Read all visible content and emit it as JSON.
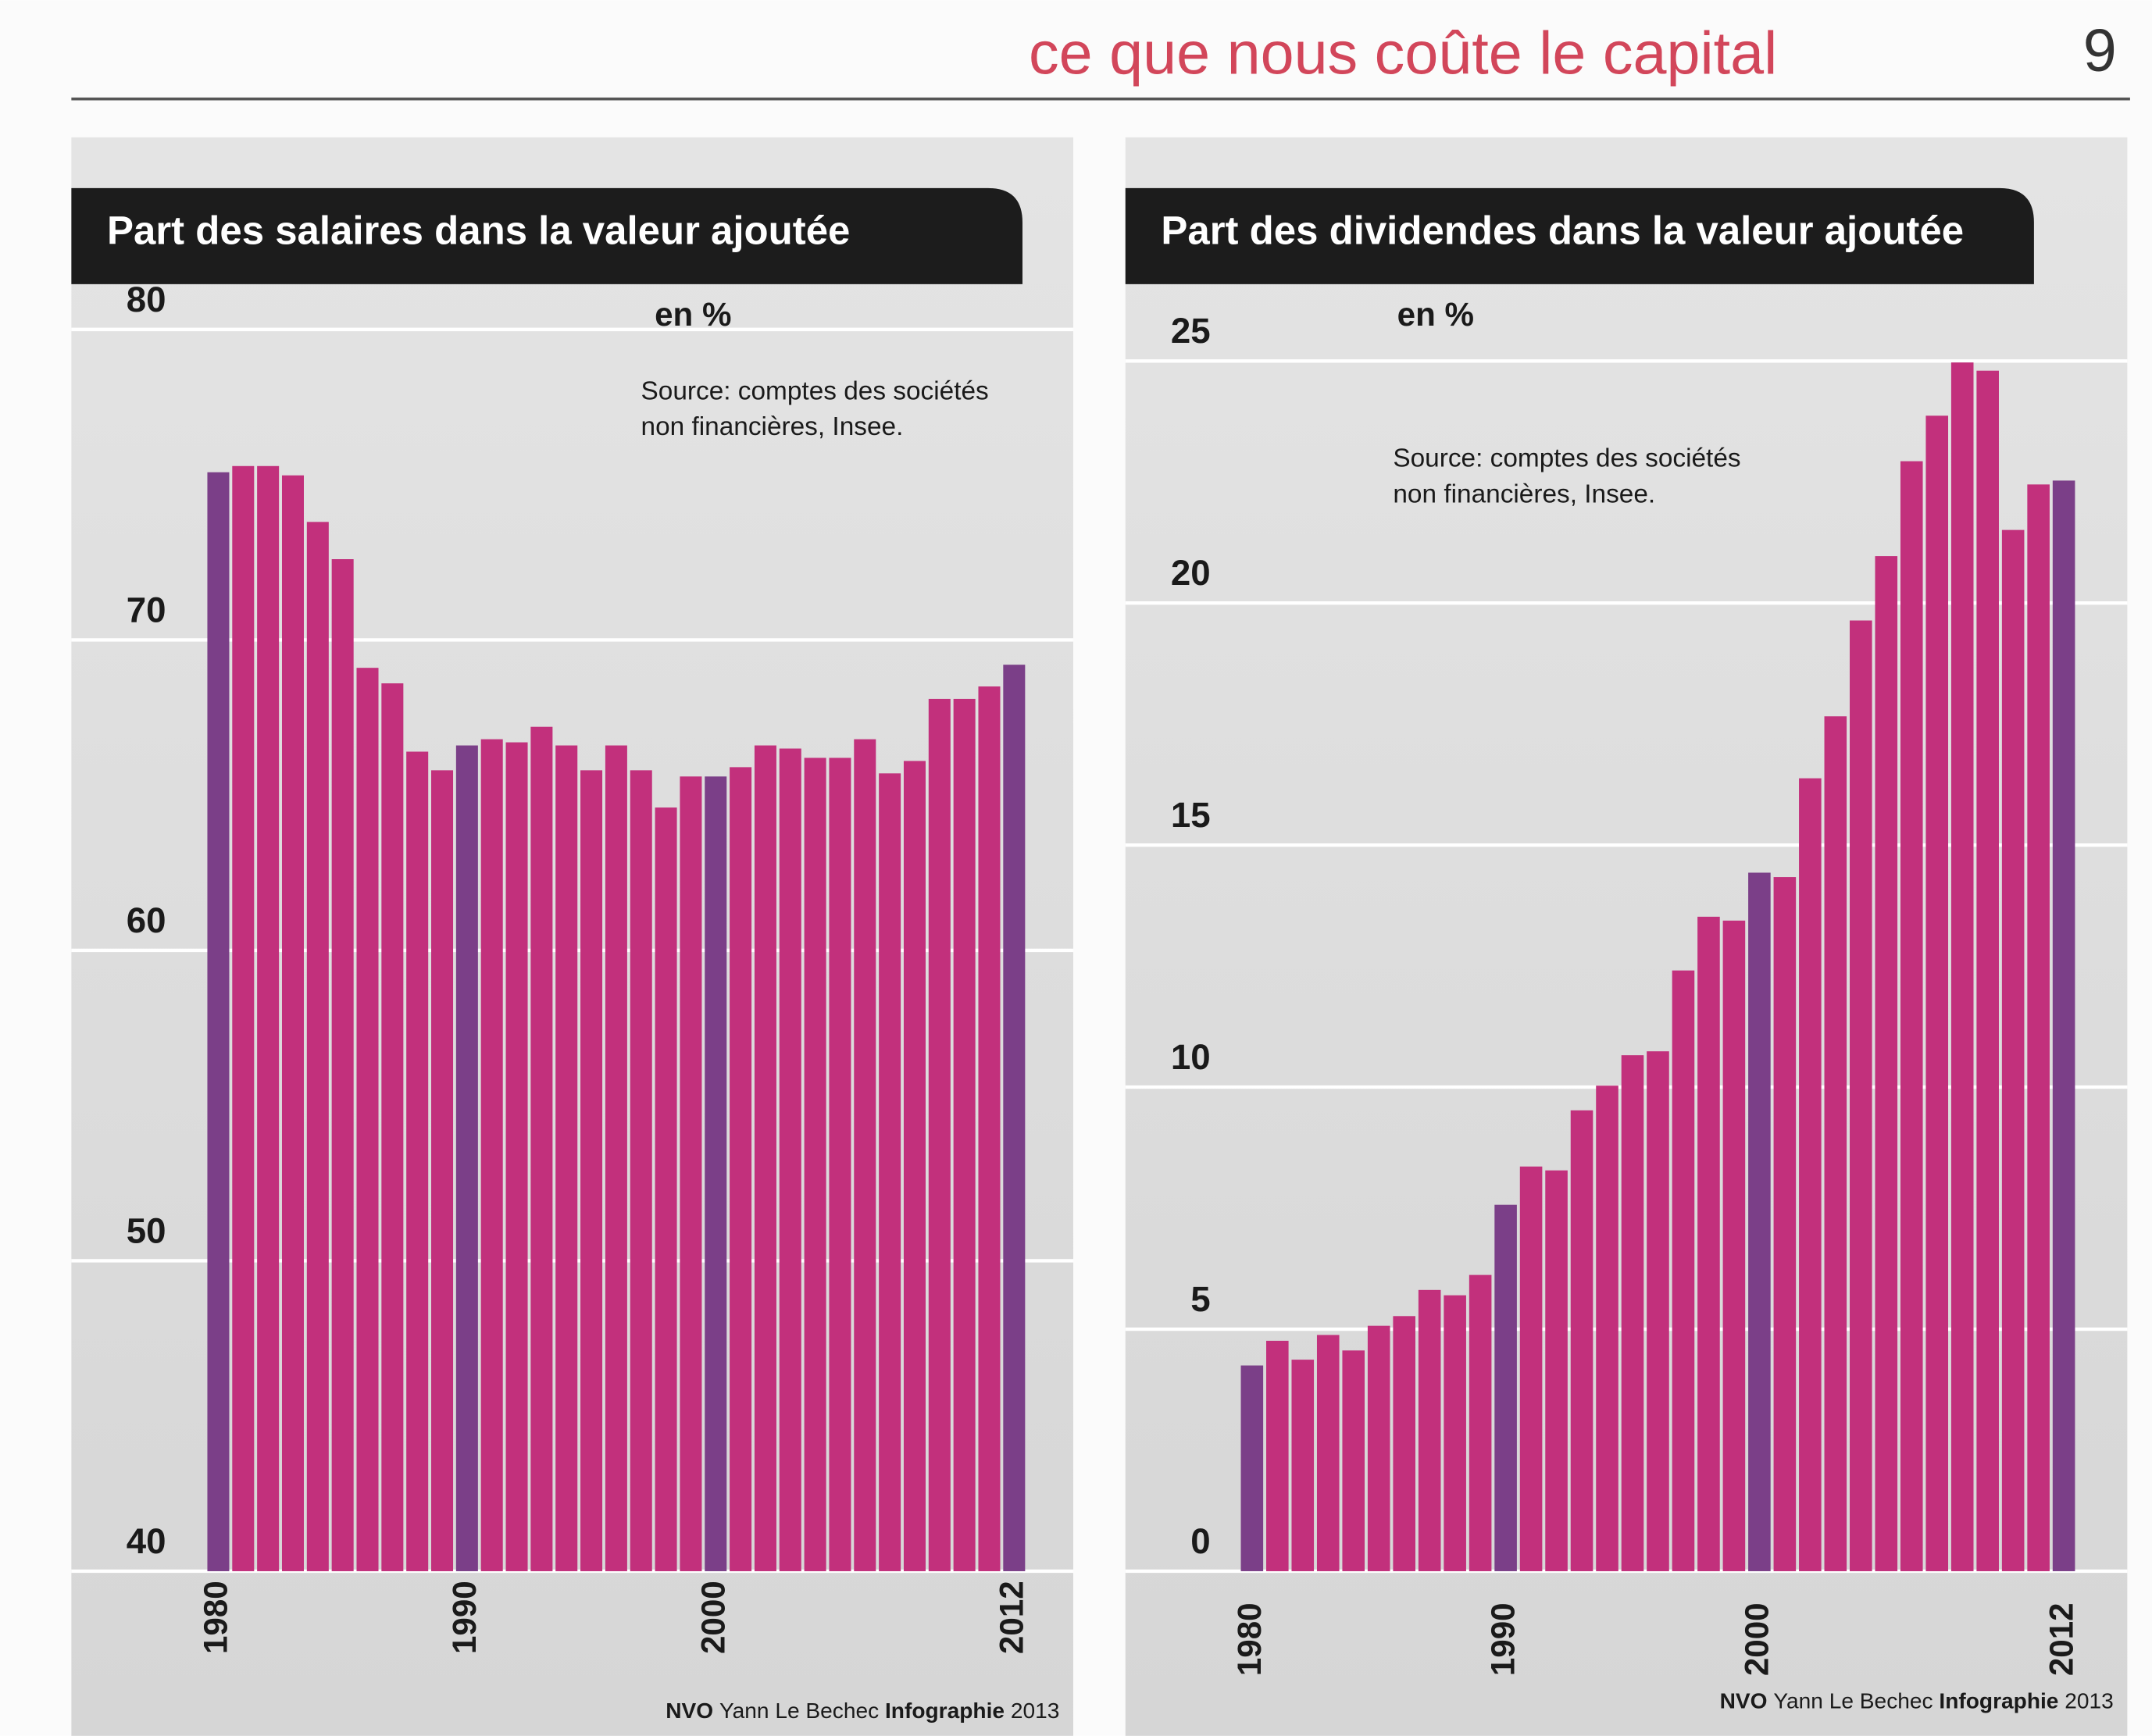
{
  "header": {
    "title": "ce que nous coûte le capital",
    "page_number": 9
  },
  "chart_data": [
    {
      "type": "bar",
      "title": "Part des salaires dans la valeur ajoutée",
      "unit": "en %",
      "source": [
        "Source: comptes des sociétés",
        "non financières, Insee."
      ],
      "credit": [
        "NVO",
        "Yann Le Bechec",
        "Infographie",
        "2013"
      ],
      "categories": [
        "1980",
        null,
        null,
        null,
        null,
        null,
        null,
        null,
        null,
        null,
        "1990",
        null,
        null,
        null,
        null,
        null,
        null,
        null,
        null,
        null,
        "2000",
        null,
        null,
        null,
        null,
        null,
        null,
        null,
        null,
        null,
        null,
        null,
        "2012"
      ],
      "values": [
        75.4,
        75.6,
        75.6,
        75.3,
        73.8,
        72.6,
        69.1,
        68.6,
        66.4,
        65.8,
        66.6,
        66.8,
        66.7,
        67.2,
        66.6,
        65.8,
        66.6,
        65.8,
        64.6,
        65.6,
        65.6,
        65.9,
        66.6,
        66.5,
        66.2,
        66.2,
        66.8,
        65.7,
        66.1,
        68.1,
        68.1,
        68.5,
        69.2
      ],
      "color": "#c2307c",
      "highlight_color": "#7b3f88",
      "ylim": [
        40,
        80
      ],
      "yticks": [
        40,
        50,
        60,
        70,
        80
      ],
      "grid": true
    },
    {
      "type": "bar",
      "title": "Part des dividendes dans la valeur ajoutée",
      "unit": "en %",
      "source": [
        "Source: comptes des sociétés",
        "non financières, Insee."
      ],
      "credit": [
        "NVO",
        "Yann Le Bechec",
        "Infographie",
        "2013"
      ],
      "categories": [
        "1980",
        null,
        null,
        null,
        null,
        null,
        null,
        null,
        null,
        null,
        "1990",
        null,
        null,
        null,
        null,
        null,
        null,
        null,
        null,
        null,
        "2000",
        null,
        null,
        null,
        null,
        null,
        null,
        null,
        null,
        null,
        null,
        null,
        "2012"
      ],
      "values": [
        4.25,
        4.76,
        4.37,
        4.88,
        4.56,
        5.07,
        5.27,
        5.81,
        5.7,
        6.12,
        7.57,
        8.36,
        8.28,
        9.52,
        10.03,
        10.66,
        10.74,
        12.41,
        13.52,
        13.44,
        14.43,
        14.34,
        16.38,
        17.66,
        19.64,
        20.97,
        22.93,
        23.87,
        24.97,
        24.8,
        21.51,
        22.45,
        22.53
      ],
      "color": "#c2307c",
      "highlight_color": "#7b3f88",
      "ylim": [
        0,
        25
      ],
      "yticks": [
        0,
        5,
        10,
        15,
        20,
        25
      ],
      "grid": true
    }
  ]
}
